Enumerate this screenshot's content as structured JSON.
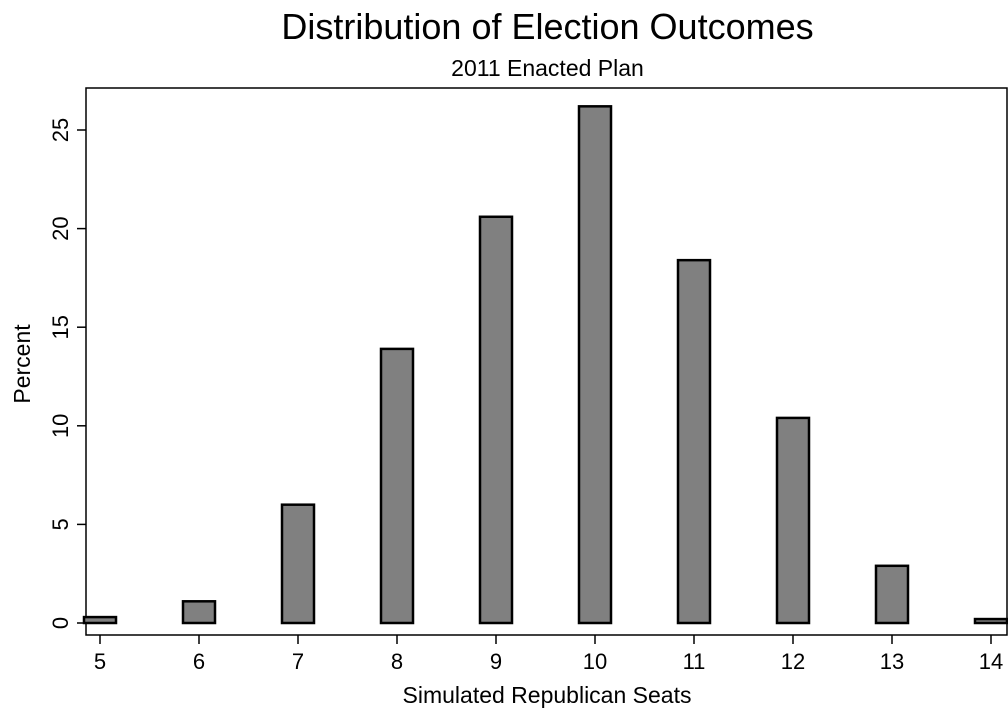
{
  "chart_data": {
    "type": "bar",
    "title": "Distribution of Election Outcomes",
    "subtitle": "2011 Enacted Plan",
    "xlabel": "Simulated Republican Seats",
    "ylabel": "Percent",
    "categories": [
      5,
      6,
      7,
      8,
      9,
      10,
      11,
      12,
      13,
      14
    ],
    "values": [
      0.3,
      1.1,
      6.0,
      13.9,
      20.6,
      26.2,
      18.4,
      10.4,
      2.9,
      0.2
    ],
    "xlim": [
      5,
      14
    ],
    "ylim": [
      0,
      25
    ],
    "xticks": [
      5,
      6,
      7,
      8,
      9,
      10,
      11,
      12,
      13,
      14
    ],
    "yticks": [
      0,
      5,
      10,
      15,
      20,
      25
    ],
    "grid": false,
    "legend": "none",
    "bar_color": "#808080",
    "bar_edge_color": "#000000"
  }
}
